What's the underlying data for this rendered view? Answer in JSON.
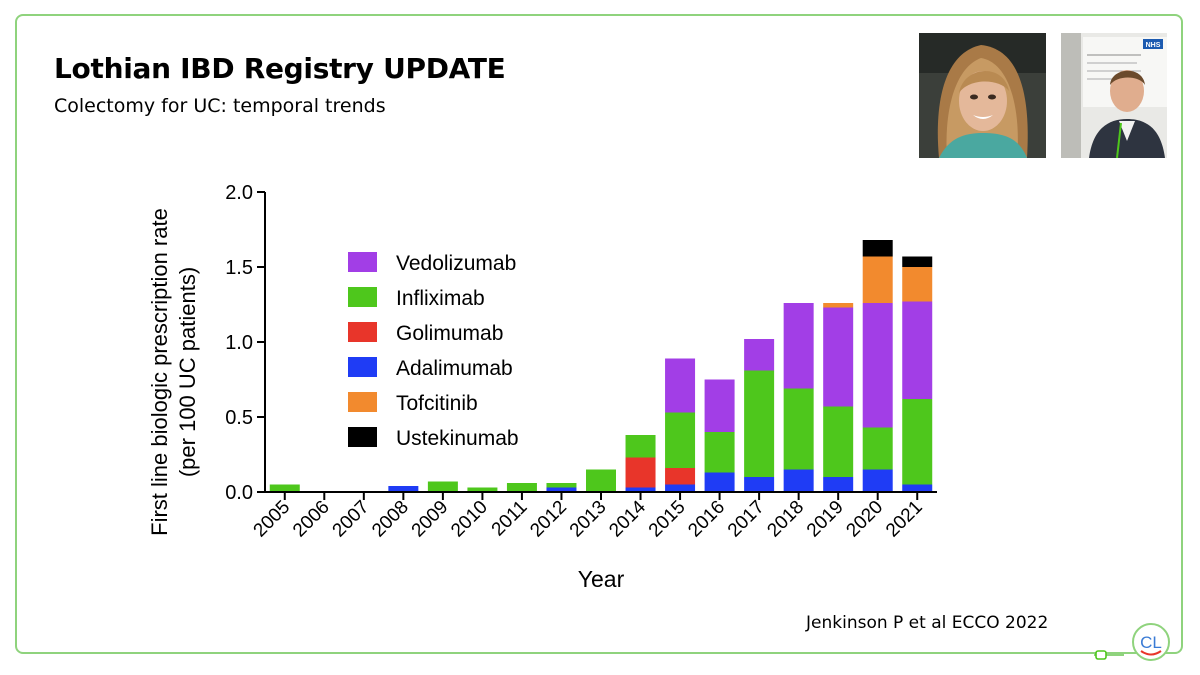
{
  "slide": {
    "title": "Lothian IBD Registry UPDATE",
    "subtitle": "Colectomy for UC: temporal trends",
    "citation": "Jenkinson P et al ECCO 2022",
    "logo_text": "CL",
    "border_color": "#8fd37d"
  },
  "photos": [
    {
      "name": "woman-portrait-photo"
    },
    {
      "name": "man-portrait-photo",
      "sign_text": "NHS"
    }
  ],
  "chart_data": {
    "type": "bar",
    "stacked": true,
    "xlabel": "Year",
    "ylabel_lines": [
      "First line biologic prescription rate",
      "(per 100 UC patients)"
    ],
    "ylim": [
      0,
      2.0
    ],
    "yticks": [
      "0.0",
      "0.5",
      "1.0",
      "1.5",
      "2.0"
    ],
    "ytick_values": [
      0,
      0.5,
      1.0,
      1.5,
      2.0
    ],
    "legend_placement": "upper-left inside plot",
    "categories": [
      "2005",
      "2006",
      "2007",
      "2008",
      "2009",
      "2010",
      "2011",
      "2012",
      "2013",
      "2014",
      "2015",
      "2016",
      "2017",
      "2018",
      "2019",
      "2020",
      "2021"
    ],
    "series": [
      {
        "name": "Adalimumab",
        "color": "#1f3cf5",
        "values": [
          0,
          0,
          0,
          0.04,
          0,
          0,
          0,
          0.03,
          0,
          0.03,
          0.05,
          0.13,
          0.1,
          0.15,
          0.1,
          0.15,
          0.05
        ]
      },
      {
        "name": "Golimumab",
        "color": "#e8352a",
        "values": [
          0,
          0,
          0,
          0,
          0,
          0,
          0,
          0,
          0,
          0.2,
          0.11,
          0,
          0,
          0,
          0,
          0,
          0
        ]
      },
      {
        "name": "Infliximab",
        "color": "#4ec71c",
        "values": [
          0.05,
          0,
          0,
          0,
          0.07,
          0.03,
          0.06,
          0.03,
          0.15,
          0.15,
          0.37,
          0.27,
          0.71,
          0.54,
          0.47,
          0.28,
          0.57
        ]
      },
      {
        "name": "Vedolizumab",
        "color": "#a23ee6",
        "values": [
          0,
          0,
          0,
          0,
          0,
          0,
          0,
          0,
          0,
          0,
          0.36,
          0.35,
          0.21,
          0.57,
          0.66,
          0.83,
          0.65
        ]
      },
      {
        "name": "Tofcitinib",
        "color": "#f28a2e",
        "values": [
          0,
          0,
          0,
          0,
          0,
          0,
          0,
          0,
          0,
          0,
          0,
          0,
          0,
          0,
          0.03,
          0.31,
          0.23
        ]
      },
      {
        "name": "Ustekinumab",
        "color": "#000000",
        "values": [
          0,
          0,
          0,
          0,
          0,
          0,
          0,
          0,
          0,
          0,
          0,
          0,
          0,
          0,
          0,
          0.11,
          0.07
        ]
      }
    ],
    "legend_order": [
      "Vedolizumab",
      "Infliximab",
      "Golimumab",
      "Adalimumab",
      "Tofcitinib",
      "Ustekinumab"
    ]
  }
}
